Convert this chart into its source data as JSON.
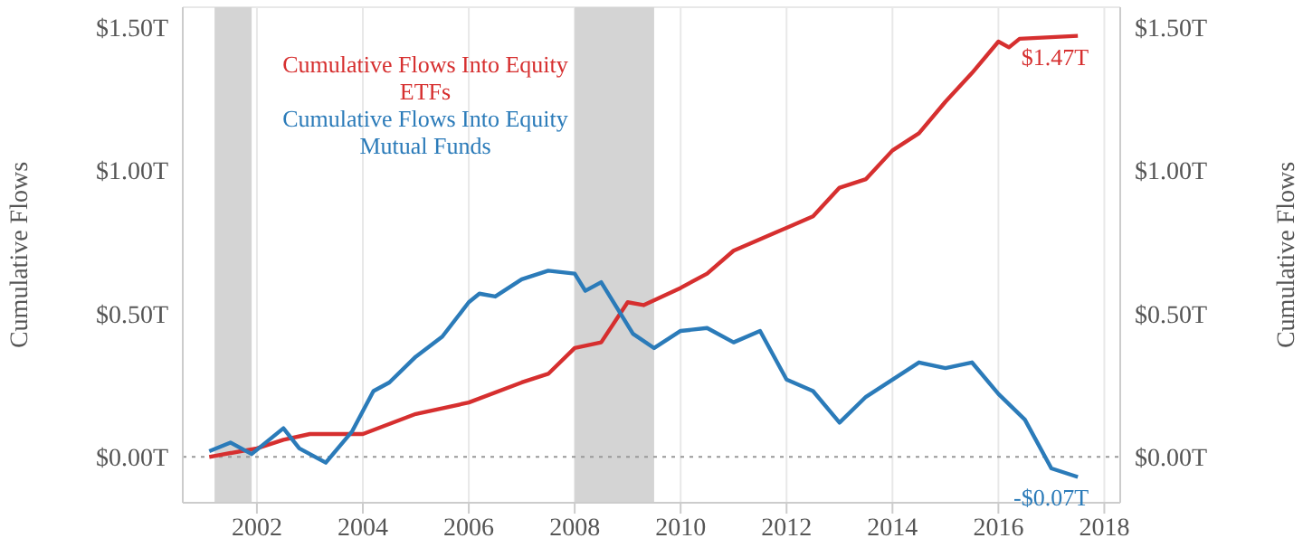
{
  "chart_data": {
    "type": "line",
    "ylabel": "Cumulative Flows",
    "y2label": "Cumulative Flows",
    "xlim": [
      2000.6,
      2018.3
    ],
    "xticks": [
      2002,
      2004,
      2006,
      2008,
      2010,
      2012,
      2014,
      2016,
      2018
    ],
    "ylim": [
      -0.16,
      1.57
    ],
    "yticks": [
      {
        "value": 0,
        "label": "$0.00T"
      },
      {
        "value": 0.5,
        "label": "$0.50T"
      },
      {
        "value": 1,
        "label": "$1.00T"
      },
      {
        "value": 1.5,
        "label": "$1.50T"
      }
    ],
    "y2lim": [
      -0.16,
      1.57
    ],
    "y2ticks": [
      {
        "value": 0,
        "label": "$0.00T"
      },
      {
        "value": 0.5,
        "label": "$0.50T"
      },
      {
        "value": 1,
        "label": "$1.00T"
      },
      {
        "value": 1.5,
        "label": "$1.50T"
      }
    ],
    "grid": true,
    "legend": "top left",
    "marker": "none",
    "line_style": "solid",
    "series": [
      {
        "name": "Cumulative Flows Into Equity ETFs",
        "color": "#d62f2f",
        "x": [
          2001.1,
          2002,
          2002.5,
          2003,
          2003.5,
          2004,
          2005,
          2006,
          2007,
          2007.5,
          2008,
          2008.5,
          2009,
          2009.3,
          2010,
          2010.5,
          2011,
          2012,
          2012.5,
          2013,
          2013.5,
          2014,
          2014.5,
          2015,
          2015.5,
          2016,
          2016.2,
          2016.4,
          2017.5
        ],
        "values": [
          0.0,
          0.03,
          0.06,
          0.08,
          0.08,
          0.08,
          0.15,
          0.19,
          0.26,
          0.29,
          0.38,
          0.4,
          0.54,
          0.53,
          0.59,
          0.64,
          0.72,
          0.8,
          0.84,
          0.94,
          0.97,
          1.07,
          1.13,
          1.24,
          1.34,
          1.45,
          1.43,
          1.46,
          1.47
        ]
      },
      {
        "name": "Cumulative Flows Into Equity Mutual Funds",
        "color": "#2b7bb9",
        "x": [
          2001.1,
          2001.5,
          2001.9,
          2002.5,
          2002.8,
          2003.3,
          2003.8,
          2004.2,
          2004.5,
          2005,
          2005.5,
          2006,
          2006.2,
          2006.5,
          2007,
          2007.5,
          2008,
          2008.2,
          2008.5,
          2008.8,
          2009.1,
          2009.5,
          2010,
          2010.5,
          2011,
          2011.5,
          2012,
          2012.5,
          2013,
          2013.5,
          2014,
          2014.5,
          2015,
          2015.5,
          2016,
          2016.5,
          2017,
          2017.5
        ],
        "values": [
          0.02,
          0.05,
          0.01,
          0.1,
          0.03,
          -0.02,
          0.09,
          0.23,
          0.26,
          0.35,
          0.42,
          0.54,
          0.57,
          0.56,
          0.62,
          0.65,
          0.64,
          0.58,
          0.61,
          0.52,
          0.43,
          0.38,
          0.44,
          0.45,
          0.4,
          0.44,
          0.27,
          0.23,
          0.12,
          0.21,
          0.27,
          0.33,
          0.31,
          0.33,
          0.22,
          0.13,
          -0.04,
          -0.07
        ]
      }
    ],
    "ref_lines": [
      {
        "axis": "y",
        "value": 0,
        "line_style": "dotted",
        "color": "#999999"
      }
    ],
    "bands": [
      {
        "axis": "x",
        "from": 2001.2,
        "to": 2001.9,
        "color": "#d4d4d4"
      },
      {
        "axis": "x",
        "from": 2008.0,
        "to": 2009.5,
        "color": "#d4d4d4"
      }
    ],
    "annotations": [
      {
        "text": "$1.47T",
        "x": 2017.5,
        "y": 1.47
      },
      {
        "text": "-$0.07T",
        "x": 2017.5,
        "y": -0.07
      }
    ]
  }
}
